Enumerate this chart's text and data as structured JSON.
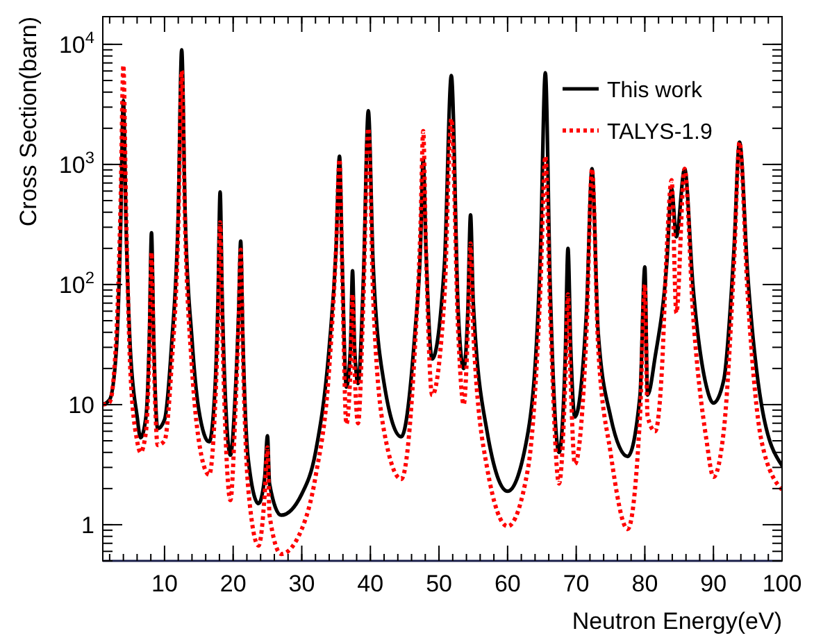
{
  "chart_data": {
    "type": "line",
    "xlabel": "Neutron Energy(eV)",
    "ylabel": "Cross Section(barn)",
    "log": "y",
    "xlim": [
      1,
      100
    ],
    "xticks": [
      10,
      20,
      30,
      40,
      50,
      60,
      70,
      80,
      90,
      100
    ],
    "ylim": [
      0.5,
      17000
    ],
    "yticks": [
      1,
      10,
      {
        "value": 100,
        "label": "10$^{2}$"
      },
      {
        "value": 1000,
        "label": "10$^{3}$"
      },
      {
        "value": 10000,
        "label": "10$^{4}$"
      }
    ],
    "legend": "top right",
    "series": [
      {
        "name": "This work",
        "color": "#000000",
        "line_style": "solid",
        "x": [
          1,
          2,
          3,
          3.6,
          4,
          4.4,
          5,
          6,
          6.5,
          7.3,
          7.8,
          8.1,
          8.4,
          9,
          10,
          11,
          12,
          12.5,
          13,
          14,
          15,
          16.5,
          17.3,
          17.8,
          18.1,
          18.4,
          19,
          19.6,
          20.3,
          20.8,
          21.1,
          21.4,
          22.2,
          23.7,
          24.6,
          25,
          25.3,
          27,
          30,
          32,
          34,
          35,
          35.5,
          35.9,
          36.5,
          37.1,
          37.4,
          37.7,
          38.2,
          39,
          39.7,
          40.4,
          42,
          44.5,
          46.5,
          47.3,
          47.7,
          48.1,
          49,
          50.8,
          51.8,
          52.8,
          53.6,
          54.2,
          54.6,
          55,
          57,
          60,
          63,
          64.8,
          65.5,
          66.2,
          67.5,
          68.4,
          68.8,
          69.2,
          69.8,
          71.5,
          72.3,
          73.2,
          75,
          77.5,
          79.3,
          80,
          80.4,
          81.5,
          83.2,
          83.9,
          84.6,
          85.8,
          87,
          89,
          90,
          91.5,
          93,
          93.8,
          95,
          97,
          100
        ],
        "values": [
          10,
          11,
          30,
          300,
          3400,
          300,
          30,
          8,
          5.3,
          8,
          40,
          270,
          40,
          6.3,
          7.5,
          30,
          400,
          9000,
          400,
          35,
          9,
          4.9,
          12,
          80,
          590,
          80,
          8,
          3.8,
          12,
          60,
          230,
          40,
          3.5,
          1.5,
          2.5,
          5.5,
          2.2,
          1.2,
          1.8,
          4,
          30,
          200,
          1170,
          150,
          14,
          30,
          130,
          30,
          15,
          120,
          2800,
          150,
          15,
          5.4,
          40,
          200,
          1100,
          200,
          24,
          150,
          5500,
          60,
          20,
          60,
          380,
          70,
          6,
          1.9,
          6,
          200,
          5800,
          100,
          4,
          25,
          200,
          30,
          7.9,
          60,
          920,
          40,
          8,
          3.7,
          12,
          140,
          12,
          25,
          150,
          630,
          250,
          920,
          100,
          14,
          10.3,
          16,
          200,
          1530,
          120,
          10,
          3.1
        ]
      },
      {
        "name": "TALYS-1.9",
        "color": "#ff0000",
        "line_style": "dotted",
        "x": [
          1,
          2,
          3,
          3.6,
          4,
          4.4,
          5,
          6,
          6.5,
          7.3,
          7.8,
          8.1,
          8.4,
          9,
          10,
          11,
          12,
          12.5,
          13,
          14,
          15,
          16.5,
          17.3,
          17.8,
          18.1,
          18.4,
          19,
          19.6,
          20.3,
          20.8,
          21.1,
          21.4,
          22.2,
          23.7,
          24.6,
          25,
          25.3,
          27,
          30,
          32,
          34,
          35,
          35.5,
          35.9,
          36.5,
          37.1,
          37.4,
          37.7,
          38.2,
          39,
          39.7,
          40.4,
          42,
          44.5,
          46.5,
          47.3,
          47.7,
          48.1,
          49,
          50.8,
          51.8,
          52.8,
          53.6,
          54.2,
          54.6,
          55,
          57,
          60,
          63,
          64.8,
          65.5,
          66.2,
          67.5,
          68.4,
          68.8,
          69.2,
          69.8,
          71.5,
          72.3,
          73.2,
          75,
          77.5,
          79.3,
          80,
          80.4,
          81.5,
          82.5,
          83.2,
          83.9,
          84.6,
          85.8,
          87,
          89,
          90,
          91.5,
          93,
          93.8,
          95,
          97,
          100
        ],
        "values": [
          10,
          10.5,
          40,
          500,
          6700,
          400,
          20,
          5,
          4,
          6,
          30,
          185,
          30,
          4.6,
          5,
          20,
          300,
          6000,
          300,
          20,
          5,
          2.6,
          8,
          50,
          330,
          50,
          4,
          1.6,
          8,
          50,
          195,
          30,
          2,
          0.67,
          1.8,
          4.4,
          1.2,
          0.57,
          0.92,
          2.5,
          20,
          200,
          1100,
          120,
          6.9,
          20,
          83,
          20,
          7,
          80,
          2000,
          80,
          6,
          2.4,
          30,
          300,
          1900,
          200,
          12,
          80,
          2400,
          40,
          10,
          40,
          220,
          40,
          3,
          0.97,
          3,
          100,
          1170,
          60,
          2.2,
          15,
          83,
          15,
          3.2,
          40,
          920,
          30,
          4,
          0.92,
          8,
          100,
          8,
          6,
          20,
          200,
          740,
          58,
          920,
          60,
          5,
          2.5,
          6,
          150,
          1530,
          80,
          5,
          1.95
        ]
      }
    ]
  }
}
